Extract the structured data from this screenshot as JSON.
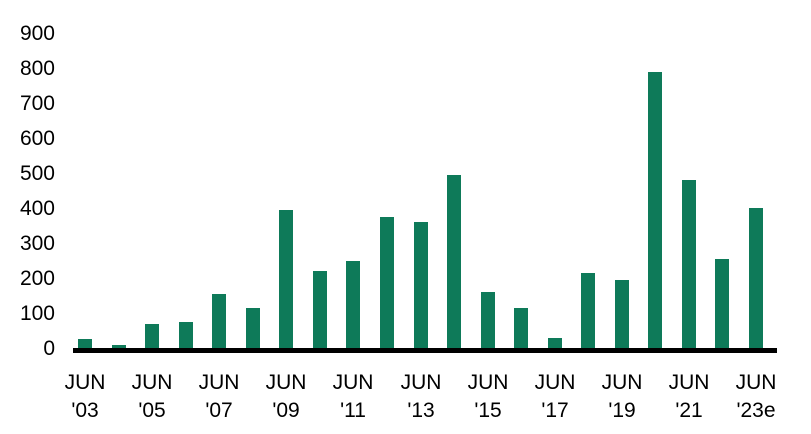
{
  "chart_data": {
    "type": "bar",
    "title": "",
    "xlabel": "",
    "ylabel": "",
    "ylim": [
      0,
      900
    ],
    "y_ticks": [
      0,
      100,
      200,
      300,
      400,
      500,
      600,
      700,
      800,
      900
    ],
    "grid": false,
    "legend": null,
    "bar_color": "#0e7a59",
    "axis_color": "#000000",
    "background_color": "#ffffff",
    "values": [
      30,
      15,
      75,
      80,
      160,
      120,
      400,
      225,
      255,
      380,
      365,
      500,
      165,
      120,
      35,
      220,
      200,
      795,
      485,
      260,
      405
    ],
    "x_tick_every": 2,
    "x_tick_labels": [
      {
        "line1": "JUN",
        "line2": "'03"
      },
      {
        "line1": "JUN",
        "line2": "'05"
      },
      {
        "line1": "JUN",
        "line2": "'07"
      },
      {
        "line1": "JUN",
        "line2": "'09"
      },
      {
        "line1": "JUN",
        "line2": "'11"
      },
      {
        "line1": "JUN",
        "line2": "'13"
      },
      {
        "line1": "JUN",
        "line2": "'15"
      },
      {
        "line1": "JUN",
        "line2": "'17"
      },
      {
        "line1": "JUN",
        "line2": "'19"
      },
      {
        "line1": "JUN",
        "line2": "'21"
      },
      {
        "line1": "JUN",
        "line2": "'23e"
      }
    ]
  }
}
